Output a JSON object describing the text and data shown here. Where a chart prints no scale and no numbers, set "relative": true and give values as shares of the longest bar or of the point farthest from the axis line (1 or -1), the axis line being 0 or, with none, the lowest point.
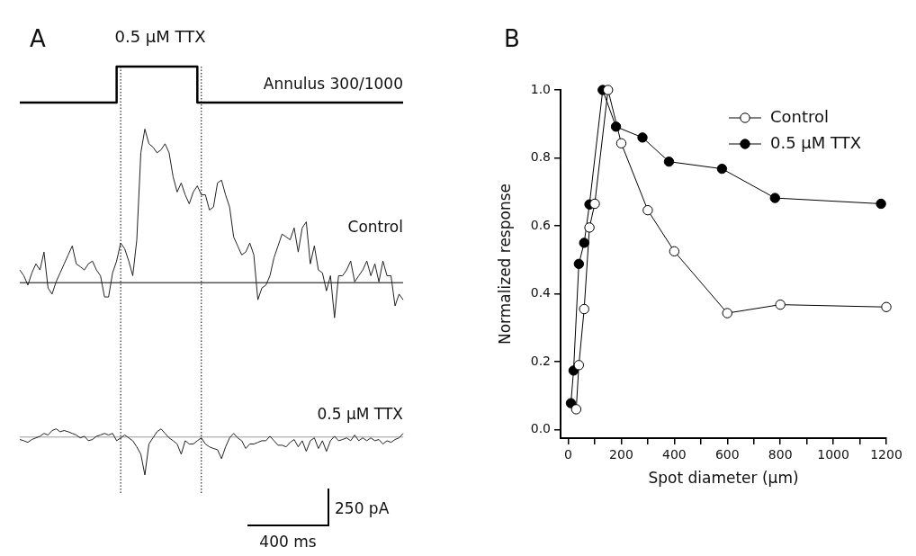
{
  "chart_data": [
    {
      "type": "line",
      "title": "0.5 μM TTX",
      "relative": true,
      "grid": false,
      "legend": false,
      "tick_labels": false,
      "marker": "none",
      "categories": [
        null,
        null,
        null,
        null,
        null,
        null,
        null,
        null,
        null,
        null,
        null,
        null,
        null,
        null,
        null,
        null,
        null,
        null,
        null,
        null,
        null,
        null,
        null,
        null,
        null,
        null,
        null,
        null,
        null,
        null,
        null,
        null,
        null,
        null,
        null,
        null,
        null,
        null,
        null,
        null,
        null,
        null,
        null,
        null,
        null,
        null,
        null,
        null,
        null,
        null,
        null,
        null,
        null,
        null,
        null,
        null,
        null,
        null,
        null,
        null,
        null,
        null,
        null,
        null,
        null,
        null,
        null,
        null,
        null,
        null,
        null,
        null,
        null,
        null,
        null,
        null,
        null,
        null,
        null,
        null,
        null,
        null,
        null,
        null,
        null,
        null,
        null,
        null,
        null,
        null,
        null,
        null,
        null,
        null,
        null,
        null
      ],
      "series": [
        {
          "name": "Annulus 300/1000",
          "type": "step",
          "color": "#000000",
          "values": [
            0.912,
            0.912,
            0.912,
            0.912,
            0.912,
            0.912,
            0.912,
            0.912,
            0.912,
            0.912,
            0.912,
            0.912,
            0.912,
            0.912,
            0.912,
            0.912,
            0.912,
            0.912,
            0.912,
            0.912,
            0.912,
            0.912,
            0.912,
            0.912,
            0.912,
            1,
            1,
            1,
            1,
            1,
            1,
            1,
            1,
            1,
            1,
            1,
            1,
            1,
            1,
            1,
            1,
            1,
            1,
            1,
            1,
            0.912,
            0.912,
            0.912,
            0.912,
            0.912,
            0.912,
            0.912,
            0.912,
            0.912,
            0.912,
            0.912,
            0.912,
            0.912,
            0.912,
            0.912,
            0.912,
            0.912,
            0.912,
            0.912,
            0.912,
            0.912,
            0.912,
            0.912,
            0.912,
            0.912,
            0.912,
            0.912,
            0.912,
            0.912,
            0.912,
            0.912,
            0.912,
            0.912,
            0.912,
            0.912,
            0.912,
            0.912,
            0.912,
            0.912,
            0.912,
            0.912,
            0.912,
            0.912,
            0.912,
            0.912,
            0.912,
            0.912,
            0.912,
            0.912,
            0.912,
            0.912
          ]
        },
        {
          "name": "Control",
          "color": "#222222",
          "values": [
            0.502,
            0.488,
            0.465,
            0.495,
            0.517,
            0.502,
            0.546,
            0.458,
            0.443,
            0.473,
            0.495,
            0.517,
            0.539,
            0.561,
            0.517,
            0.51,
            0.502,
            0.517,
            0.524,
            0.502,
            0.488,
            0.436,
            0.436,
            0.495,
            0.524,
            0.568,
            0.554,
            0.524,
            0.488,
            0.576,
            0.789,
            0.847,
            0.811,
            0.803,
            0.789,
            0.796,
            0.811,
            0.789,
            0.73,
            0.693,
            0.715,
            0.686,
            0.664,
            0.693,
            0.708,
            0.686,
            0.686,
            0.649,
            0.656,
            0.715,
            0.722,
            0.686,
            0.656,
            0.583,
            0.561,
            0.539,
            0.546,
            0.568,
            0.539,
            0.429,
            0.458,
            0.465,
            0.488,
            0.532,
            0.561,
            0.59,
            0.583,
            0.576,
            0.605,
            0.546,
            0.605,
            0.62,
            0.517,
            0.561,
            0.502,
            0.495,
            0.451,
            0.488,
            0.385,
            0.488,
            0.488,
            0.502,
            0.524,
            0.473,
            0.488,
            0.502,
            0.524,
            0.488,
            0.517,
            0.473,
            0.524,
            0.488,
            0.488,
            0.414,
            0.443,
            0.429
          ]
        },
        {
          "name": "0.5 μM TTX",
          "color": "#222222",
          "values": [
            0.087,
            0.084,
            0.08,
            0.087,
            0.091,
            0.095,
            0.102,
            0.098,
            0.109,
            0.113,
            0.106,
            0.109,
            0.106,
            0.102,
            0.098,
            0.091,
            0.095,
            0.084,
            0.087,
            0.095,
            0.098,
            0.102,
            0.098,
            0.102,
            0.084,
            0.091,
            0.098,
            0.091,
            0.084,
            0.069,
            0.051,
            0,
            0.076,
            0.091,
            0.106,
            0.113,
            0.102,
            0.091,
            0.084,
            0.076,
            0.051,
            0.084,
            0.076,
            0.076,
            0.084,
            0.091,
            0.076,
            0.069,
            0.065,
            0.062,
            0.04,
            0.069,
            0.091,
            0.102,
            0.091,
            0.084,
            0.065,
            0.076,
            0.076,
            0.08,
            0.084,
            0.084,
            0.095,
            0.084,
            0.073,
            0.073,
            0.069,
            0.08,
            0.087,
            0.069,
            0.084,
            0.058,
            0.084,
            0.091,
            0.065,
            0.084,
            0.058,
            0.084,
            0.095,
            0.084,
            0.087,
            0.091,
            0.084,
            0.098,
            0.084,
            0.091,
            0.084,
            0.091,
            0.084,
            0.087,
            0.076,
            0.084,
            0.08,
            0.087,
            0.091,
            0.102
          ]
        }
      ],
      "ref_lines": [
        {
          "axis": "y",
          "value": 0.471,
          "color": "#000000"
        },
        {
          "axis": "y",
          "value": 0.093,
          "color": "#999999"
        }
      ],
      "annotations": [
        "A",
        "250 pA",
        "400 ms"
      ]
    },
    {
      "type": "line",
      "xlabel": "Spot diameter (μm)",
      "ylabel": "Normalized response",
      "grid": false,
      "legend": "top right",
      "marker": "circle",
      "series": [
        {
          "name": "Control",
          "color": "#ffffff",
          "x": [
            30,
            40,
            60,
            80,
            100,
            150,
            200,
            300,
            400,
            600,
            800,
            1200
          ],
          "values": [
            0.06,
            0.19,
            0.355,
            0.595,
            0.665,
            1.0,
            0.843,
            0.646,
            0.525,
            0.343,
            0.368,
            0.361
          ]
        },
        {
          "name": "0.5 μM TTX",
          "color": "#000000",
          "x": [
            10,
            20,
            40,
            60,
            80,
            130,
            180,
            280,
            380,
            580,
            780,
            1180
          ],
          "values": [
            0.078,
            0.174,
            0.488,
            0.55,
            0.663,
            1.0,
            0.892,
            0.86,
            0.789,
            0.768,
            0.682,
            0.665
          ]
        }
      ],
      "xlim": [
        -29,
        1200
      ],
      "xticks": [
        0,
        {
          "value": 100,
          "label": null
        },
        200,
        {
          "value": 300,
          "label": null
        },
        400,
        {
          "value": 500,
          "label": null
        },
        600,
        {
          "value": 700,
          "label": null
        },
        800,
        {
          "value": 900,
          "label": null
        },
        1000,
        {
          "value": 1100,
          "label": null
        },
        1200
      ],
      "ylim": [
        -0.025,
        1.0
      ],
      "yticks": [
        {
          "value": 0,
          "label": "0.0"
        },
        {
          "value": 0.2,
          "label": "0.2"
        },
        {
          "value": 0.4,
          "label": "0.4"
        },
        {
          "value": 0.6,
          "label": "0.6"
        },
        {
          "value": 0.8,
          "label": "0.8"
        },
        {
          "value": 1,
          "label": "1.0"
        }
      ],
      "annotations": [
        "B"
      ]
    }
  ]
}
